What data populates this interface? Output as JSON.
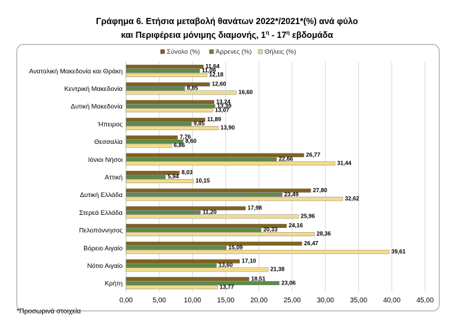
{
  "page": {
    "title_line1": "Γράφημα 6. Ετήσια μεταβολή θανάτων 2022*/2021*(%) ανά φύλο",
    "title_line2_before": "και Περιφέρεια μόνιμης διαμονής, 1",
    "title_line2_sup1": "η",
    "title_line2_mid": " - 17",
    "title_line2_sup2": "η",
    "title_line2_after": " εβδομάδα",
    "footnote": "*Προσωρινά στοιχεία"
  },
  "chart_data": {
    "type": "bar",
    "orientation": "horizontal",
    "categories": [
      "Ανατολική Μακεδονία και Θράκη",
      "Κεντρική Μακεδονία",
      "Δυτική Μακεδονία",
      "Ήπειρος",
      "Θεσσαλία",
      "Ιόνιοι Νήσοι",
      "Αττική",
      "Δυτική Ελλάδα",
      "Στερεά Ελλάδα",
      "Πελοπόννησος",
      "Βόρειο Αιγαίο",
      "Νότιο Αιγαίο",
      "Κρήτη"
    ],
    "series": [
      {
        "name": "Σύνολο (%)",
        "color": "#7f6320",
        "values": [
          11.64,
          12.6,
          13.24,
          11.89,
          7.76,
          26.77,
          8.03,
          27.8,
          17.98,
          24.16,
          26.47,
          17.1,
          18.51
        ],
        "labels": [
          "11,64",
          "12,60",
          "13,24",
          "11,89",
          "7,76",
          "26,77",
          "8,03",
          "27,80",
          "17,98",
          "24,16",
          "26,47",
          "17,10",
          "18,51"
        ]
      },
      {
        "name": "Άρρενες (%)",
        "color": "#5e8a4a",
        "values": [
          11.09,
          8.85,
          13.39,
          9.85,
          8.6,
          22.66,
          5.94,
          23.49,
          11.2,
          20.33,
          15.09,
          13.6,
          23.06
        ],
        "labels": [
          "11,09",
          "8,85",
          "13,39",
          "9,85",
          "8,60",
          "22,66",
          "5,94",
          "23,49",
          "11,20",
          "20,33",
          "15,09",
          "13,60",
          "23,06"
        ]
      },
      {
        "name": "Θήλεις (%)",
        "color": "#f1dc8c",
        "values": [
          12.18,
          16.6,
          13.07,
          13.9,
          6.86,
          31.44,
          10.15,
          32.62,
          25.96,
          28.36,
          39.61,
          21.38,
          13.77
        ],
        "labels": [
          "12,18",
          "16,60",
          "13,07",
          "13,90",
          "6,86",
          "31,44",
          "10,15",
          "32,62",
          "25,96",
          "28,36",
          "39,61",
          "21,38",
          "13,77"
        ]
      }
    ],
    "x_ticks": [
      "0,00",
      "5,00",
      "10,00",
      "15,00",
      "20,00",
      "25,00",
      "30,00",
      "35,00",
      "40,00",
      "45,00"
    ],
    "xlim": [
      0,
      45
    ],
    "grid": true,
    "legend_position": "top"
  }
}
